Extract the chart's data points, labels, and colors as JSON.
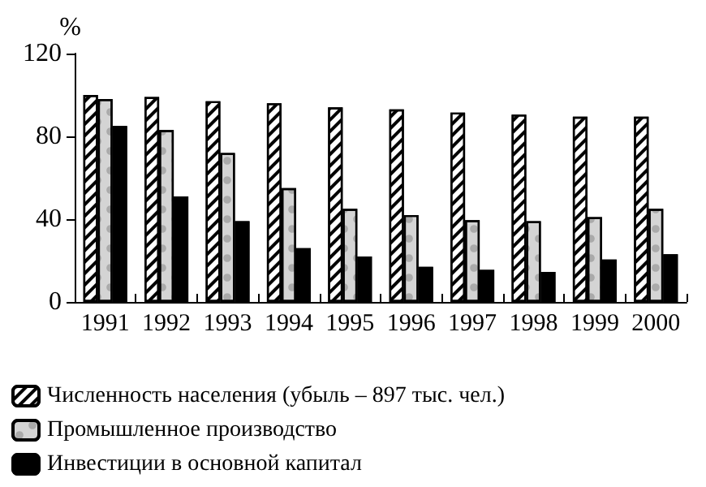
{
  "chart_data": {
    "type": "bar",
    "ylabel": "%",
    "categories": [
      "1991",
      "1992",
      "1993",
      "1994",
      "1995",
      "1996",
      "1997",
      "1998",
      "1999",
      "2000"
    ],
    "series": [
      {
        "name": "Численность населения (убыль – 897 тыс. чел.)",
        "color": "#ffffff",
        "values": [
          100,
          99,
          97,
          96,
          94,
          93,
          91.5,
          90.5,
          89.5,
          89.5
        ]
      },
      {
        "name": "Промышленное производство",
        "color": "#d4d4d4",
        "values": [
          98,
          83,
          72,
          55,
          45,
          42,
          39.5,
          39,
          41,
          45
        ]
      },
      {
        "name": "Инвестиции в основной капитал",
        "color": "#000000",
        "values": [
          85,
          51,
          39,
          26,
          22,
          17,
          15.5,
          14.5,
          20.5,
          23
        ]
      }
    ],
    "ylim": [
      0,
      120
    ],
    "yticks": [
      0,
      40,
      80,
      120
    ],
    "grid": false,
    "legend": "bottom"
  }
}
